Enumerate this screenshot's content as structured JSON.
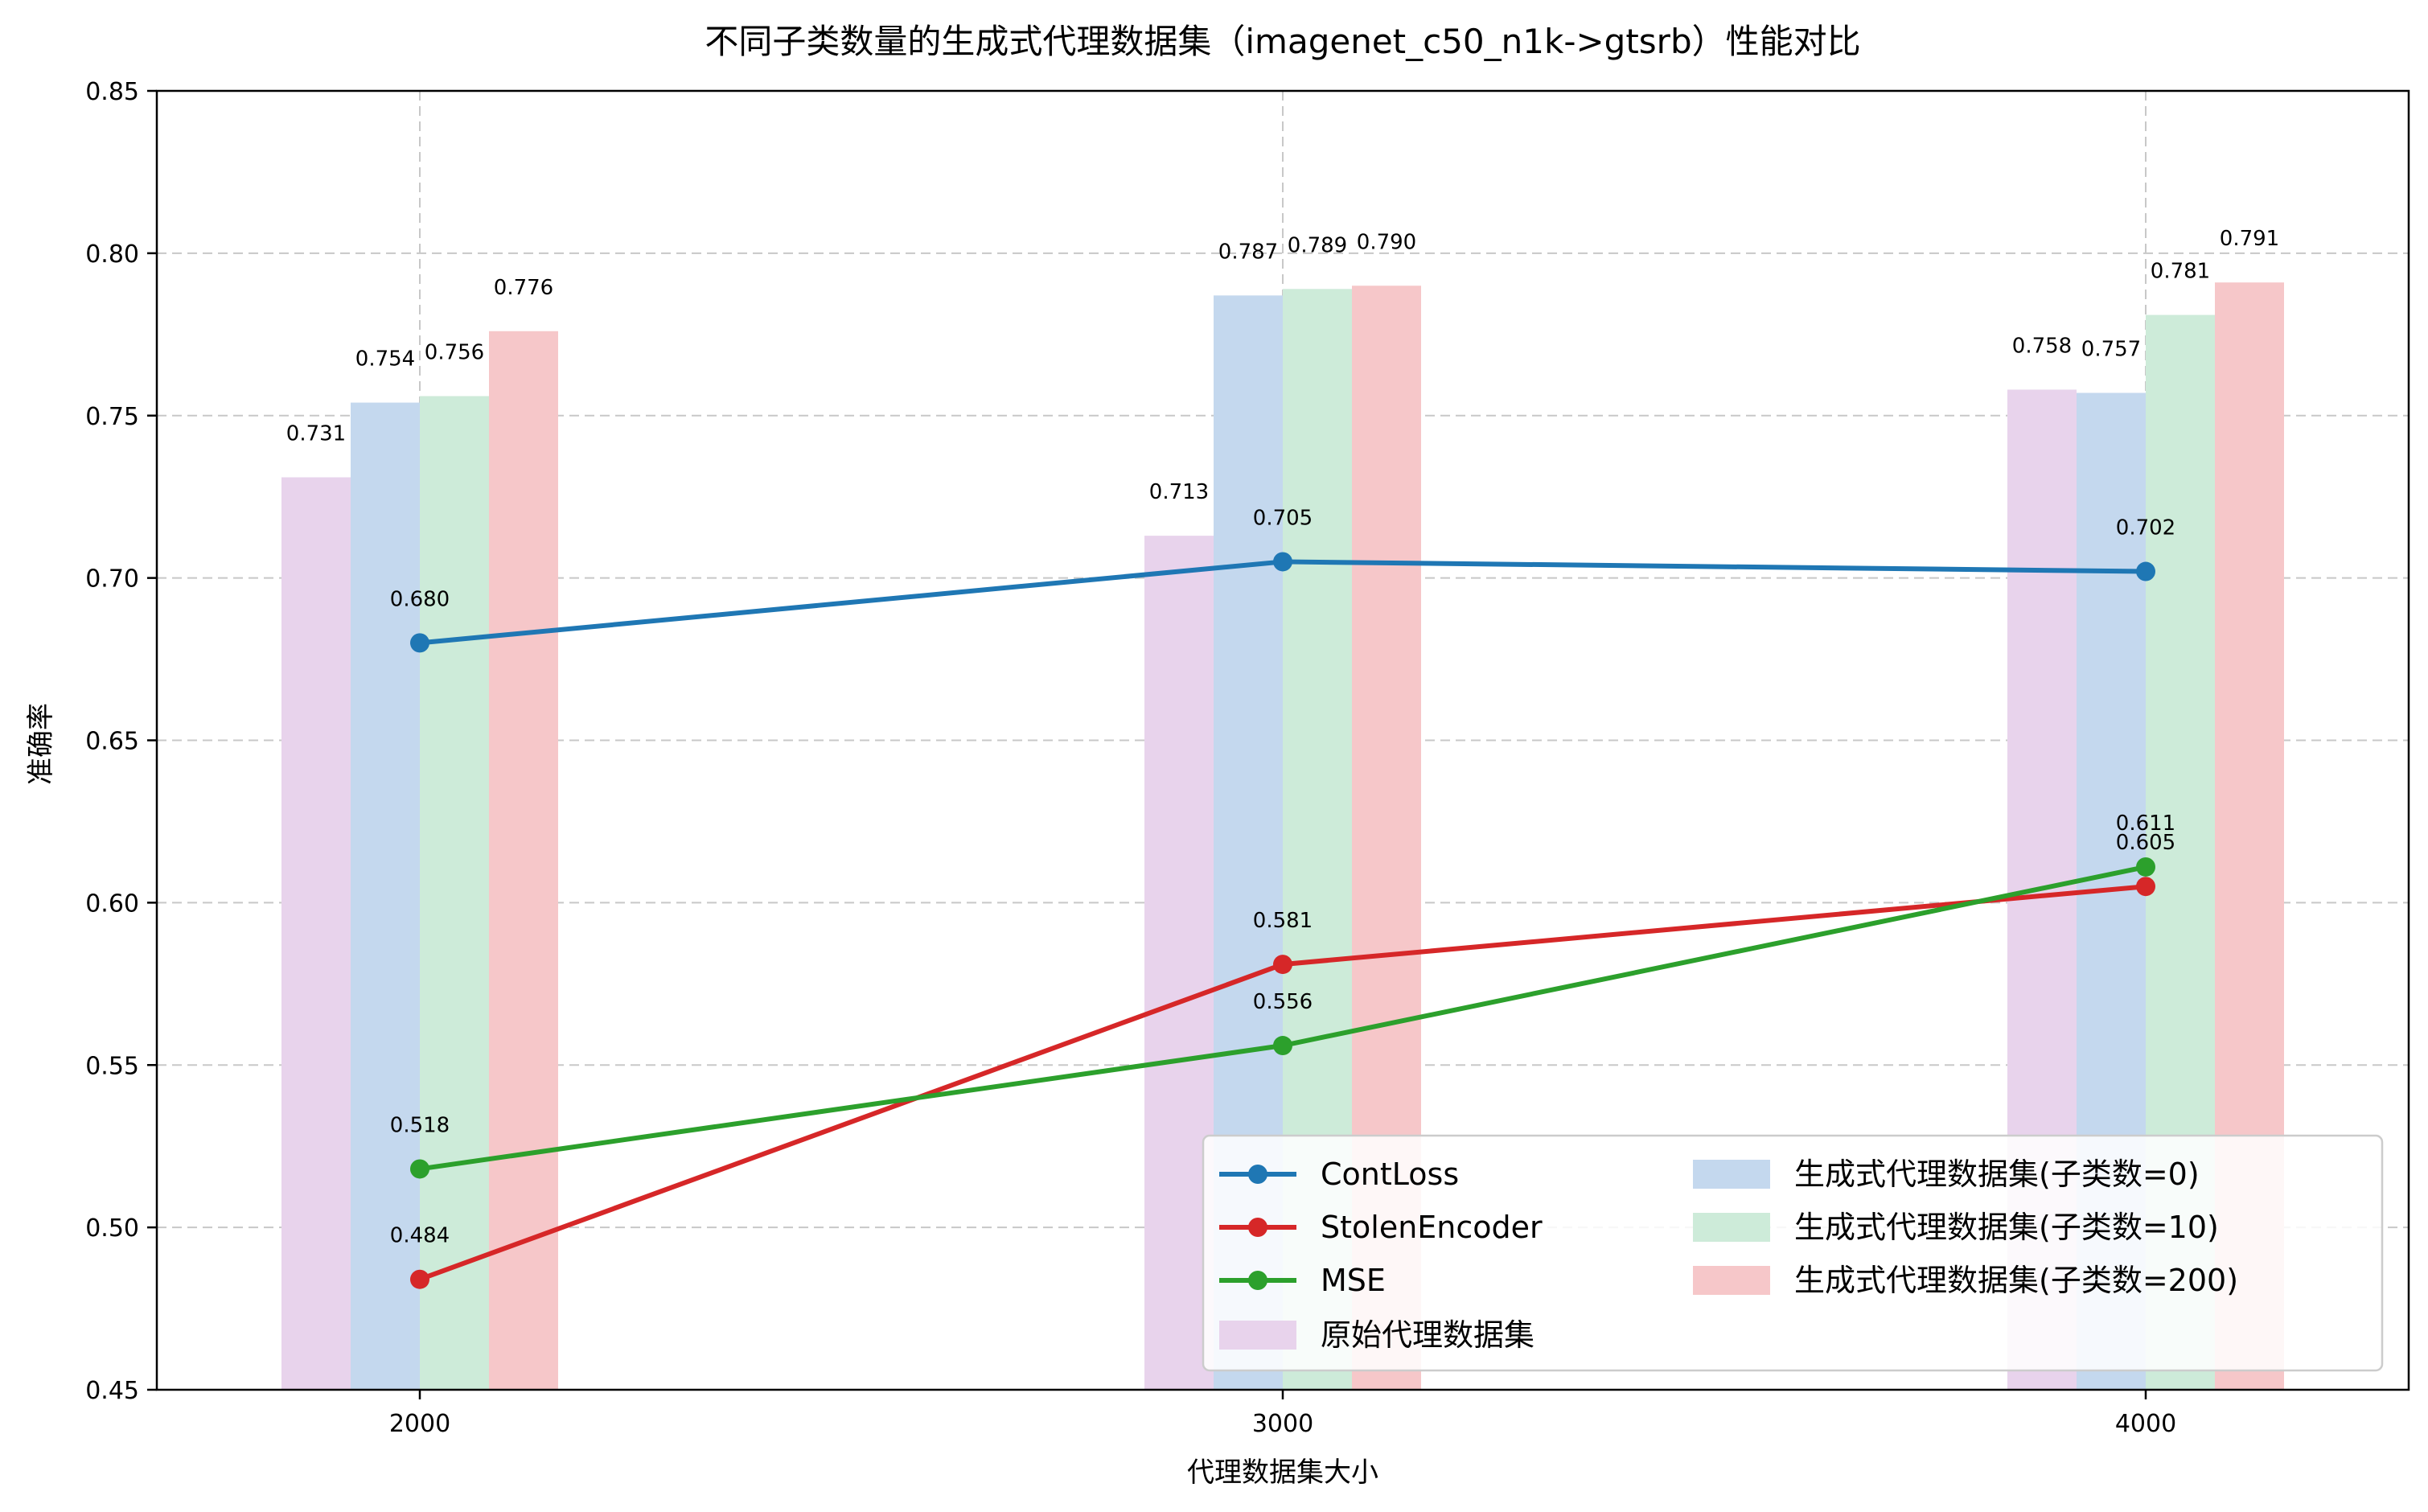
{
  "chart_data": {
    "type": "bar",
    "title": "不同子类数量的生成式代理数据集（imagenet_c50_n1k->gtsrb）性能对比",
    "xlabel": "代理数据集大小",
    "ylabel": "准确率",
    "categories": [
      "2000",
      "3000",
      "4000"
    ],
    "ylim": [
      0.45,
      0.85
    ],
    "yticks": [
      "0.45",
      "0.50",
      "0.55",
      "0.60",
      "0.65",
      "0.70",
      "0.75",
      "0.80",
      "0.85"
    ],
    "grid": true,
    "legend_position": "lower-right",
    "bar_series": [
      {
        "name": "原始代理数据集",
        "color": "#e8d3ec",
        "values": [
          0.731,
          0.713,
          0.758
        ],
        "labels": [
          "0.731",
          "0.713",
          "0.758"
        ]
      },
      {
        "name": "生成式代理数据集(子类数=0)",
        "color": "#c4d8ee",
        "values": [
          0.754,
          0.787,
          0.757
        ],
        "labels": [
          "0.754",
          "0.787",
          "0.757"
        ]
      },
      {
        "name": "生成式代理数据集(子类数=10)",
        "color": "#cdebd9",
        "values": [
          0.756,
          0.789,
          0.781
        ],
        "labels": [
          "0.756",
          "0.789",
          "0.781"
        ]
      },
      {
        "name": "生成式代理数据集(子类数=200)",
        "color": "#f6c7c9",
        "values": [
          0.776,
          0.79,
          0.791
        ],
        "labels": [
          "0.776",
          "0.790",
          "0.791"
        ]
      }
    ],
    "line_series": [
      {
        "name": "ContLoss",
        "color": "#1f77b4",
        "values": [
          0.68,
          0.705,
          0.702
        ],
        "labels": [
          "0.680",
          "0.705",
          "0.702"
        ]
      },
      {
        "name": "StolenEncoder",
        "color": "#d62728",
        "values": [
          0.484,
          0.581,
          0.605
        ],
        "labels": [
          "0.484",
          "0.581",
          "0.605"
        ]
      },
      {
        "name": "MSE",
        "color": "#2ca02c",
        "values": [
          0.518,
          0.556,
          0.611
        ],
        "labels": [
          "0.518",
          "0.556",
          "0.611"
        ]
      }
    ]
  }
}
